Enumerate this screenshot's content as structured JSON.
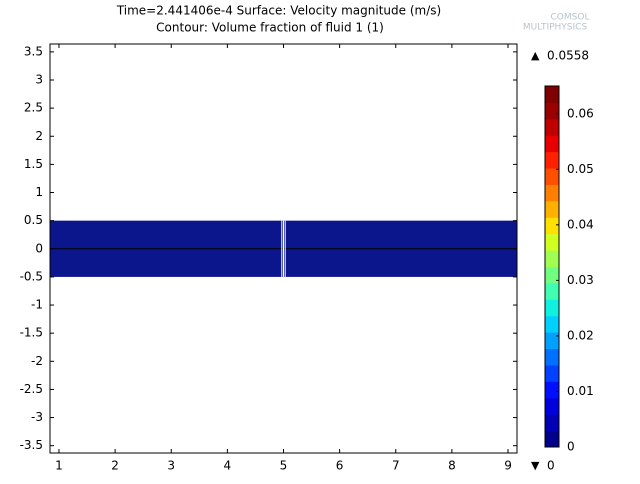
{
  "chart_data": {
    "type": "surface",
    "title": [
      "Time=2.441406e-4   Surface: Velocity magnitude (m/s)",
      "Contour: Volume fraction of fluid 1 (1)"
    ],
    "logo": [
      "COMSOL",
      "MULTIPHYSICS"
    ],
    "xlim": [
      0.84,
      9.16
    ],
    "ylim": [
      -3.63,
      3.64
    ],
    "xticks": [
      1,
      2,
      3,
      4,
      5,
      6,
      7,
      8,
      9
    ],
    "yticks": [
      -3.5,
      -3,
      -2.5,
      -2,
      -1.5,
      -1,
      -0.5,
      0,
      0.5,
      1,
      1.5,
      2,
      2.5,
      3,
      3.5
    ],
    "domain": {
      "x": [
        0.84,
        9.16
      ],
      "y": [
        -0.5,
        0.5
      ],
      "color": "#0c168c"
    },
    "contours": [
      {
        "x": [
          0.84,
          9.16
        ],
        "y": [
          0,
          0
        ],
        "color": "#000000"
      },
      {
        "x": [
          4.97,
          4.97
        ],
        "y": [
          -0.5,
          0.5
        ],
        "color": "#ffffff"
      },
      {
        "x": [
          5.0,
          5.0
        ],
        "y": [
          -0.5,
          0.5
        ],
        "color": "#ffffff"
      },
      {
        "x": [
          5.03,
          5.03
        ],
        "y": [
          -0.5,
          0.5
        ],
        "color": "#ffffff"
      }
    ],
    "colorbar": {
      "lim": [
        0,
        0.065
      ],
      "ticks": [
        0,
        0.01,
        0.02,
        0.03,
        0.04,
        0.05,
        0.06
      ],
      "max": 0.0558,
      "min": 0,
      "colors": [
        "#00008c",
        "#0000b4",
        "#0000dc",
        "#0010ff",
        "#0040ff",
        "#0070ff",
        "#00a0ff",
        "#00d0ff",
        "#10f0e0",
        "#40ffb0",
        "#70ff80",
        "#a0ff50",
        "#d0ff20",
        "#ffe000",
        "#ffb000",
        "#ff8000",
        "#ff5000",
        "#ff2000",
        "#e80000",
        "#c00000",
        "#9a0000",
        "#800000"
      ]
    }
  }
}
